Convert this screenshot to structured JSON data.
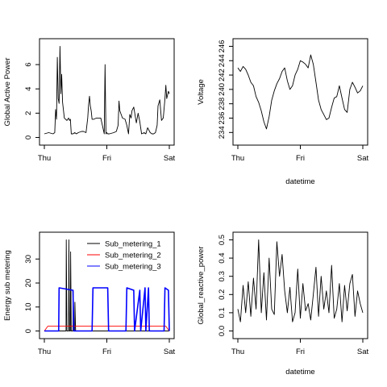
{
  "chart_data": [
    {
      "type": "line",
      "xlabel": "",
      "ylabel": "Global Active Power",
      "x_ticks": [
        "Thu",
        "Fri",
        "Sat"
      ],
      "y_ticks": [
        0,
        2,
        4,
        6
      ],
      "xlim": [
        0,
        2880
      ],
      "ylim": [
        -0.3,
        7.8
      ],
      "series": [
        {
          "x": [
            0,
            100,
            200,
            240,
            260,
            280,
            300,
            320,
            340,
            360,
            380,
            400,
            420,
            460,
            520,
            560,
            580,
            600,
            620,
            660,
            700,
            740,
            780,
            860,
            900,
            960,
            1000,
            1010,
            1020,
            1040,
            1060,
            1080,
            1100,
            1140,
            1200,
            1300,
            1380,
            1400,
            1420,
            1440,
            1460,
            1500,
            1600,
            1660,
            1700,
            1720,
            1740,
            1760,
            1800,
            1860,
            1900,
            1940,
            1970,
            2000,
            2020,
            2060,
            2120,
            2160,
            2200,
            2240,
            2300,
            2340,
            2380,
            2440,
            2480,
            2520,
            2560,
            2600,
            2620,
            2660,
            2700,
            2740,
            2780,
            2800,
            2820,
            2860,
            2880
          ],
          "y": [
            0.3,
            0.4,
            0.3,
            0.4,
            2.3,
            1.5,
            6.6,
            3.2,
            2.8,
            7.5,
            3.6,
            5.2,
            2.9,
            1.6,
            1.4,
            1.6,
            1.4,
            1.5,
            0.3,
            0.3,
            0.4,
            0.3,
            0.4,
            0.5,
            0.5,
            0.4,
            1.6,
            2.2,
            2.7,
            3.4,
            2.6,
            2.2,
            1.5,
            1.5,
            1.6,
            1.6,
            0.3,
            6.0,
            0.3,
            0.4,
            0.3,
            0.3,
            0.4,
            0.5,
            1.0,
            3.0,
            2.2,
            2.0,
            1.6,
            1.5,
            1.0,
            0.3,
            1.9,
            1.6,
            2.2,
            2.5,
            1.2,
            2.0,
            1.3,
            0.3,
            0.4,
            0.3,
            0.8,
            0.4,
            0.3,
            0.3,
            0.4,
            1.0,
            2.6,
            3.1,
            1.4,
            1.6,
            3.2,
            4.3,
            3.2,
            3.8,
            3.6
          ]
        }
      ]
    },
    {
      "type": "line",
      "xlabel": "datetime",
      "ylabel": "Voltage",
      "x_ticks": [
        "Thu",
        "Fri",
        "Sat"
      ],
      "y_ticks": [
        234,
        236,
        238,
        240,
        242,
        244,
        246
      ],
      "xlim": [
        0,
        2880
      ],
      "ylim": [
        232.8,
        246.5
      ],
      "series": [
        {
          "x": [
            0,
            60,
            120,
            180,
            240,
            300,
            360,
            420,
            480,
            540,
            600,
            660,
            720,
            780,
            840,
            900,
            960,
            1020,
            1080,
            1140,
            1200,
            1260,
            1320,
            1380,
            1440,
            1500,
            1560,
            1620,
            1680,
            1740,
            1800,
            1860,
            1920,
            1980,
            2040,
            2100,
            2160,
            2220,
            2280,
            2340,
            2400,
            2460,
            2520,
            2580,
            2640,
            2700,
            2760,
            2820,
            2880
          ],
          "y": [
            243.0,
            242.5,
            243.2,
            242.8,
            242.0,
            241.0,
            240.5,
            239.0,
            238.2,
            237.0,
            235.5,
            234.5,
            236.2,
            238.5,
            239.8,
            240.8,
            241.5,
            242.5,
            243.0,
            241.2,
            240.0,
            240.5,
            242.0,
            242.8,
            244.0,
            243.8,
            243.5,
            243.0,
            244.8,
            243.5,
            241.0,
            238.5,
            237.2,
            236.5,
            235.8,
            236.0,
            237.5,
            238.8,
            239.0,
            240.5,
            238.8,
            237.2,
            236.8,
            240.0,
            241.0,
            240.3,
            239.5,
            239.8,
            240.5
          ]
        }
      ]
    },
    {
      "type": "line",
      "xlabel": "",
      "ylabel": "Energy sub metering",
      "x_ticks": [
        "Thu",
        "Fri",
        "Sat"
      ],
      "y_ticks": [
        0,
        10,
        20,
        30
      ],
      "xlim": [
        0,
        2880
      ],
      "ylim": [
        -1.5,
        39.5
      ],
      "legend": {
        "position": "top-right",
        "entries": [
          "Sub_metering_1",
          "Sub_metering_2",
          "Sub_metering_3"
        ]
      },
      "series": [
        {
          "name": "Sub_metering_1",
          "color": "#000000",
          "x": [
            0,
            480,
            500,
            505,
            520,
            560,
            565,
            580,
            600,
            605,
            620,
            660,
            665,
            680,
            700,
            705,
            720,
            2880
          ],
          "y": [
            0,
            0,
            0,
            38,
            0,
            0,
            38,
            0,
            0,
            33,
            0,
            0,
            17,
            0,
            0,
            12,
            0,
            0
          ]
        },
        {
          "name": "Sub_metering_2",
          "color": "#ff0000",
          "x": [
            0,
            80,
            200,
            340,
            420,
            520,
            580,
            640,
            760,
            880,
            1000,
            1120,
            1240,
            1360,
            1480,
            1600,
            1720,
            1840,
            1960,
            2080,
            2200,
            2320,
            2440,
            2560,
            2680,
            2800,
            2880
          ],
          "y": [
            0,
            2,
            2,
            2,
            2,
            2,
            2,
            2,
            2,
            2,
            2,
            2,
            2,
            2,
            2,
            2,
            2,
            2,
            2,
            2,
            2,
            2,
            2,
            2,
            2,
            2,
            0
          ]
        },
        {
          "name": "Sub_metering_3",
          "color": "#0000ff",
          "x": [
            0,
            330,
            340,
            660,
            680,
            1100,
            1120,
            1460,
            1480,
            1880,
            1900,
            2060,
            2080,
            2200,
            2220,
            2320,
            2340,
            2400,
            2420,
            2760,
            2780,
            2860,
            2880
          ],
          "y": [
            0,
            0,
            18,
            17,
            0,
            0,
            18,
            18,
            0,
            0,
            18,
            17,
            0,
            17,
            0,
            18,
            0,
            18,
            0,
            0,
            18,
            17,
            0
          ]
        }
      ]
    },
    {
      "type": "line",
      "xlabel": "datetime",
      "ylabel": "Global_reactive_power",
      "x_ticks": [
        "Thu",
        "Fri",
        "Sat"
      ],
      "y_ticks": [
        0.0,
        0.1,
        0.2,
        0.3,
        0.4,
        0.5
      ],
      "xlim": [
        0,
        2880
      ],
      "ylim": [
        -0.02,
        0.52
      ],
      "series": [
        {
          "x": [
            0,
            60,
            120,
            180,
            240,
            300,
            360,
            420,
            480,
            540,
            600,
            660,
            720,
            780,
            840,
            900,
            960,
            1020,
            1080,
            1140,
            1200,
            1260,
            1320,
            1380,
            1440,
            1500,
            1560,
            1620,
            1680,
            1740,
            1800,
            1860,
            1920,
            1980,
            2040,
            2100,
            2160,
            2220,
            2280,
            2340,
            2400,
            2460,
            2520,
            2580,
            2640,
            2700,
            2760,
            2820,
            2880
          ],
          "y": [
            0.12,
            0.05,
            0.25,
            0.1,
            0.27,
            0.08,
            0.29,
            0.12,
            0.5,
            0.1,
            0.32,
            0.06,
            0.4,
            0.12,
            0.09,
            0.49,
            0.3,
            0.42,
            0.22,
            0.1,
            0.24,
            0.05,
            0.1,
            0.34,
            0.07,
            0.26,
            0.11,
            0.15,
            0.06,
            0.2,
            0.35,
            0.08,
            0.3,
            0.12,
            0.22,
            0.1,
            0.36,
            0.07,
            0.12,
            0.26,
            0.05,
            0.25,
            0.11,
            0.26,
            0.31,
            0.08,
            0.22,
            0.15,
            0.1
          ]
        }
      ]
    }
  ]
}
